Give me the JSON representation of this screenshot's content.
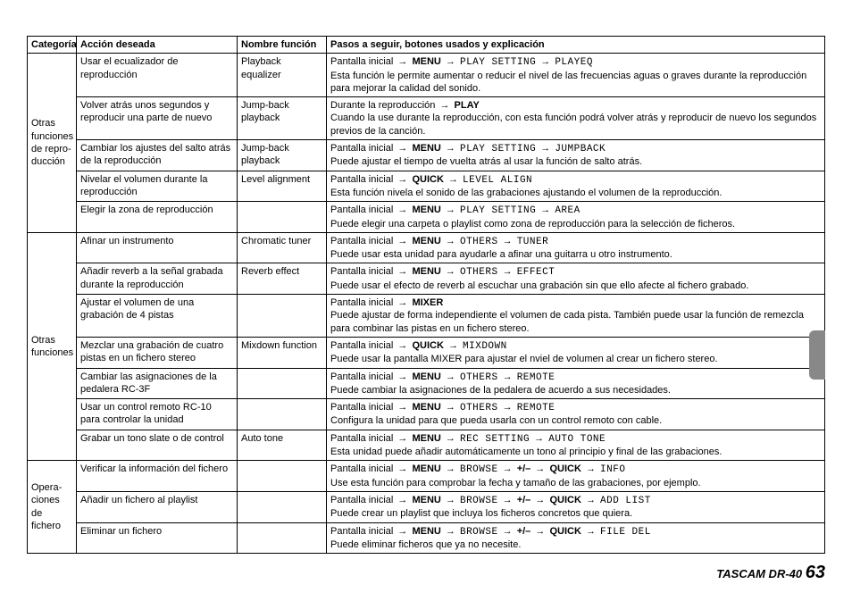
{
  "headers": {
    "cat": "Categoría",
    "action": "Acción deseada",
    "func": "Nombre función",
    "steps": "Pasos a seguir, botones usados y explicación"
  },
  "cat1": "Otras funciones de repro-ducción",
  "cat2": "Otras funciones",
  "cat3": "Opera-ciones de fichero",
  "arrow": "→",
  "pi": "Pantalla inicial",
  "menu": "MENU",
  "quick": "QUICK",
  "play": "PLAY",
  "pm": "+/–",
  "r1": {
    "action": "Usar el ecualizador de reproducción",
    "func": "Playback equalizer",
    "m1": "PLAY SETTING",
    "m2": "PLAYEQ",
    "desc": "Esta función le permite aumentar o reducir el nivel de las frecuencias aguas o graves durante la reproducción para mejorar la calidad del sonido."
  },
  "r2": {
    "action": "Volver atrás unos segundos y reproducir una parte de nuevo",
    "func": "Jump-back playback",
    "pre": "Durante la reproducción",
    "desc": "Cuando la use durante la reproducción, con esta función podrá volver atrás y reproducir de nuevo los segundos previos de la canción."
  },
  "r3": {
    "action": "Cambiar los ajustes del salto atrás de la reproducción",
    "func": "Jump-back playback",
    "m1": "PLAY SETTING",
    "m2": "JUMPBACK",
    "desc": "Puede ajustar el tiempo de vuelta atrás al usar la función de salto atrás."
  },
  "r4": {
    "action": "Nivelar el volumen durante la reproducción",
    "func": "Level alignment",
    "m1": "LEVEL ALIGN",
    "desc": "Esta función nivela el sonido de las grabaciones ajustando el volumen de la reproducción."
  },
  "r5": {
    "action": "Elegir la zona de reproducción",
    "func": "",
    "m1": "PLAY SETTING",
    "m2": "AREA",
    "desc": "Puede elegir una carpeta o playlist como zona de reproducción para la selección de ficheros."
  },
  "r6": {
    "action": "Afinar un instrumento",
    "func": "Chromatic tuner",
    "m1": "OTHERS",
    "m2": "TUNER",
    "desc": "Puede usar esta unidad para ayudarle a afinar una guitarra u otro instrumento."
  },
  "r7": {
    "action": "Añadir reverb a la señal grabada durante la reproducción",
    "func": "Reverb effect",
    "m1": "OTHERS",
    "m2": "EFFECT",
    "desc": "Puede usar el efecto de reverb al escuchar una grabación sin que ello afecte al fichero grabado."
  },
  "r8": {
    "action": "Ajustar el volumen de una grabación de 4 pistas",
    "func": "",
    "m1": "MIXER",
    "desc": "Puede ajustar de forma independiente el volumen de cada pista. También puede usar la función de remezcla para combinar las pistas en un fichero stereo."
  },
  "r9": {
    "action": "Mezclar una grabación de cuatro pistas en un fichero stereo",
    "func": "Mixdown function",
    "m1": "MIXDOWN",
    "desc": "Puede usar la pantalla MIXER para ajustar el nviel de volumen al crear un fichero stereo."
  },
  "r10": {
    "action": "Cambiar las asignaciones de la pedalera RC-3F",
    "func": "",
    "m1": "OTHERS",
    "m2": "REMOTE",
    "desc": "Puede cambiar la asignaciones de la pedalera de acuerdo a sus necesidades."
  },
  "r11": {
    "action": "Usar un control remoto RC-10 para controlar la unidad",
    "func": "",
    "m1": "OTHERS",
    "m2": "REMOTE",
    "desc": "Configura la unidad para que pueda usarla con un control remoto con cable."
  },
  "r12": {
    "action": "Grabar un tono slate o de control",
    "func": "Auto tone",
    "m1": "REC SETTING",
    "m2": "AUTO TONE",
    "desc": "Esta unidad puede añadir automáticamente un tono al principio y final de las grabaciones."
  },
  "r13": {
    "action": "Verificar la información del fichero",
    "func": "",
    "m1": "BROWSE",
    "m2": "INFO",
    "desc": "Use esta función para comprobar la fecha y tamaño de las grabaciones, por ejemplo."
  },
  "r14": {
    "action": "Añadir un fichero al playlist",
    "func": "",
    "m1": "BROWSE",
    "m2": "ADD LIST",
    "desc": "Puede crear un playlist que incluya los ficheros concretos que quiera."
  },
  "r15": {
    "action": "Eliminar un fichero",
    "func": "",
    "m1": "BROWSE",
    "m2": "FILE DEL",
    "desc": "Puede eliminar ficheros que ya no necesite."
  },
  "footer": {
    "brand": "TASCAM DR-40",
    "page": "63"
  }
}
